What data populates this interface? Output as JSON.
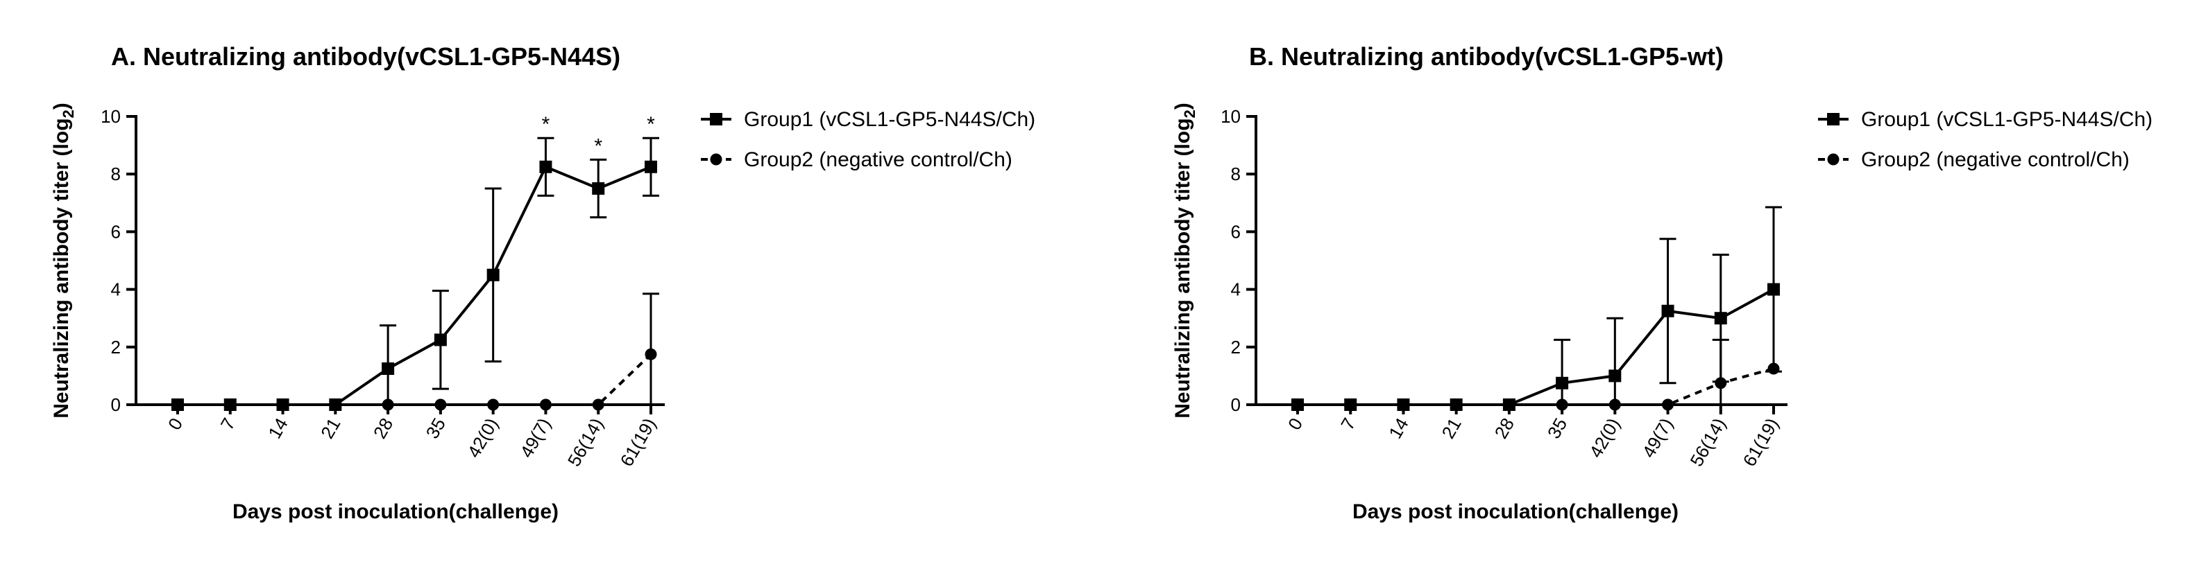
{
  "chart_data": [
    {
      "type": "line",
      "title": "A. Neutralizing antibody(vCSL1-GP5-N44S)",
      "ylabel": "Neutralizing antibody titer (log",
      "ylabel_sub": "2",
      "ylabel_end": ")",
      "xlabel": "Days post inoculation(challenge)",
      "categories": [
        "0",
        "7",
        "14",
        "21",
        "28",
        "35",
        "42(0)",
        "49(7)",
        "56(14)",
        "61(19)"
      ],
      "ylim": [
        0,
        10
      ],
      "yticks": [
        "0",
        "2",
        "4",
        "6",
        "8",
        "10"
      ],
      "series": [
        {
          "name": "Group1 (vCSL1-GP5-N44S/Ch)",
          "marker": "square",
          "dash": "solid",
          "values": [
            0,
            0,
            0,
            0,
            1.25,
            2.25,
            4.5,
            8.25,
            7.5,
            8.25
          ],
          "error": [
            0,
            0,
            0,
            0,
            1.5,
            1.7,
            3.0,
            1.0,
            1.0,
            1.0
          ]
        },
        {
          "name": "Group2 (negative control/Ch)",
          "marker": "circle",
          "dash": "dashed",
          "values": [
            0,
            0,
            0,
            0,
            0,
            0,
            0,
            0,
            0,
            1.75
          ],
          "error": [
            0,
            0,
            0,
            0,
            0,
            0,
            0,
            0,
            0,
            2.1
          ]
        }
      ],
      "annotations": [
        {
          "category": "49(7)",
          "text": "*"
        },
        {
          "category": "56(14)",
          "text": "*"
        },
        {
          "category": "61(19)",
          "text": "*"
        }
      ]
    },
    {
      "type": "line",
      "title": "B. Neutralizing antibody(vCSL1-GP5-wt)",
      "ylabel": "Neutralizing antibody titer (log",
      "ylabel_sub": "2",
      "ylabel_end": ")",
      "xlabel": "Days post inoculation(challenge)",
      "categories": [
        "0",
        "7",
        "14",
        "21",
        "28",
        "35",
        "42(0)",
        "49(7)",
        "56(14)",
        "61(19)"
      ],
      "ylim": [
        0,
        10
      ],
      "yticks": [
        "0",
        "2",
        "4",
        "6",
        "8",
        "10"
      ],
      "series": [
        {
          "name": "Group1 (vCSL1-GP5-N44S/Ch)",
          "marker": "square",
          "dash": "solid",
          "values": [
            0,
            0,
            0,
            0,
            0,
            0.75,
            1.0,
            3.25,
            3.0,
            4.0
          ],
          "error": [
            0,
            0,
            0,
            0,
            0,
            1.5,
            2.0,
            2.5,
            2.2,
            2.85
          ]
        },
        {
          "name": "Group2 (negative control/Ch)",
          "marker": "circle",
          "dash": "dashed",
          "values": [
            0,
            0,
            0,
            0,
            0,
            0,
            0,
            0,
            0.75,
            1.25
          ],
          "error": [
            0,
            0,
            0,
            0,
            0,
            0,
            0,
            0,
            1.5,
            0
          ]
        }
      ],
      "annotations": []
    }
  ]
}
